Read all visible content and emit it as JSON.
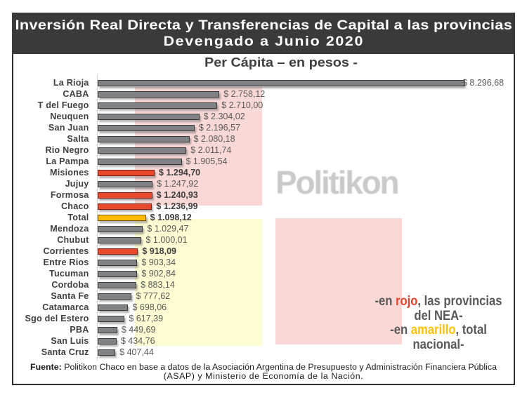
{
  "header": {
    "title_line1": "Inversión Real Directa y Transferencias de Capital a las provincias",
    "title_line2": "Devengado a Junio 2020",
    "subtitle": "Per Cápita – en pesos -"
  },
  "watermark": "Politikon",
  "chart_data": {
    "type": "bar",
    "orientation": "horizontal",
    "title": "Inversión Real Directa y Transferencias de Capital a las provincias — Devengado a Junio 2020",
    "subtitle": "Per Cápita – en pesos -",
    "unit": "pesos per cápita",
    "xlim": [
      0,
      8800
    ],
    "grid": false,
    "legend": "none",
    "categories": [
      "La Rioja",
      "CABA",
      "T del Fuego",
      "Neuquen",
      "San Juan",
      "Salta",
      "Rio Negro",
      "La Pampa",
      "Misiones",
      "Jujuy",
      "Formosa",
      "Chaco",
      "Total",
      "Mendoza",
      "Chubut",
      "Corrientes",
      "Entre Rios",
      "Tucuman",
      "Cordoba",
      "Santa Fe",
      "Catamarca",
      "Sgo del Estero",
      "PBA",
      "San Luis",
      "Santa Cruz"
    ],
    "values": [
      8296.68,
      2758.12,
      2710.0,
      2304.02,
      2196.57,
      2080.18,
      2011.74,
      1905.54,
      1294.7,
      1247.92,
      1240.93,
      1236.99,
      1098.12,
      1029.47,
      1000.01,
      918.09,
      903.34,
      902.84,
      883.14,
      777.62,
      698.06,
      617.39,
      449.69,
      434.76,
      407.44
    ],
    "value_labels": [
      "$ 8.296,68",
      "$ 2.758,12",
      "$ 2.710,00",
      "$ 2.304,02",
      "$ 2.196,57",
      "$ 2.080,18",
      "$ 2.011,74",
      "$ 1.905,54",
      "$ 1.294,70",
      "$ 1.247,92",
      "$ 1.240,93",
      "$ 1.236,99",
      "$ 1.098,12",
      "$ 1.029,47",
      "$ 1.000,01",
      "$ 918,09",
      "$ 903,34",
      "$ 902,84",
      "$ 883,14",
      "$ 777,62",
      "$ 698,06",
      "$ 617,39",
      "$ 449,69",
      "$ 434,76",
      "$ 407,44"
    ],
    "bar_colors": [
      "gray",
      "gray",
      "gray",
      "gray",
      "gray",
      "gray",
      "gray",
      "gray",
      "red",
      "gray",
      "red",
      "red",
      "amber",
      "gray",
      "gray",
      "red",
      "gray",
      "gray",
      "gray",
      "gray",
      "gray",
      "gray",
      "gray",
      "gray",
      "gray"
    ],
    "highlight_meaning": {
      "red": "las provincias del NEA",
      "amber": "total nacional"
    }
  },
  "annotation": {
    "lines": [
      [
        {
          "text": "-en "
        },
        {
          "text": "rojo",
          "color": "red"
        },
        {
          "text": ", las provincias"
        }
      ],
      [
        {
          "text": "del NEA-"
        }
      ],
      [
        {
          "text": "-en "
        },
        {
          "text": "amarillo",
          "color": "amber"
        },
        {
          "text": ", total"
        }
      ],
      [
        {
          "text": "nacional-"
        }
      ]
    ]
  },
  "footer": {
    "source_bold": "Fuente:",
    "line1_rest": " Politikon Chaco en base a datos de la Asociación Argentina de Presupuesto y Administración Financiera Pública",
    "line2": "(ASAP) y Ministerio de Economía de la Nación."
  },
  "colors": {
    "title_bar_bg": "#3a3a3a",
    "title_text": "#ffffff",
    "bar_gray": "#7f8284",
    "bar_gray_border": "#3d3d3d",
    "bar_red": "#e8472b",
    "bar_red_border": "#7a2517",
    "bar_amber": "#ffb900",
    "bar_amber_border": "#7c5a00",
    "highlight_pink": "#f9d8d6",
    "highlight_yellow": "#fdfcd2",
    "category_text": "#3f3f3f",
    "value_text": "#595959",
    "watermark_text": "#c9c9c9",
    "annotation_text": "#595959",
    "annotation_red": "#e8432c",
    "annotation_amber": "#ffc000"
  }
}
